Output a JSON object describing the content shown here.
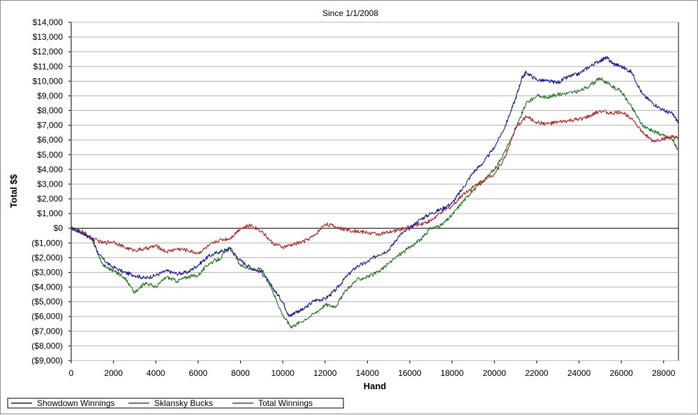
{
  "chart_data": {
    "type": "line",
    "title": "Since 1/1/2008",
    "xlabel": "Hand",
    "ylabel": "Total $$",
    "xlim": [
      0,
      28700
    ],
    "ylim": [
      -9000,
      14000
    ],
    "x_ticks": [
      0,
      2000,
      4000,
      6000,
      8000,
      10000,
      12000,
      14000,
      16000,
      18000,
      20000,
      22000,
      24000,
      26000,
      28000
    ],
    "x_tick_labels": [
      "0",
      "2000",
      "4000",
      "6000",
      "8000",
      "10000",
      "12000",
      "14000",
      "16000",
      "18000",
      "20000",
      "22000",
      "24000",
      "26000",
      "28000"
    ],
    "y_ticks": [
      14000,
      13000,
      12000,
      11000,
      10000,
      9000,
      8000,
      7000,
      6000,
      5000,
      4000,
      3000,
      2000,
      1000,
      0,
      -1000,
      -2000,
      -3000,
      -4000,
      -5000,
      -6000,
      -7000,
      -8000,
      -9000
    ],
    "y_tick_labels": [
      "$14,000",
      "$13,000",
      "$12,000",
      "$11,000",
      "$10,000",
      "$9,000",
      "$8,000",
      "$7,000",
      "$6,000",
      "$5,000",
      "$4,000",
      "$3,000",
      "$2,000",
      "$1,000",
      "$0",
      "($1,000)",
      "($2,000)",
      "($3,000)",
      "($4,000)",
      "($5,000)",
      "($6,000)",
      "($7,000)",
      "($8,000)",
      "($9,000)"
    ],
    "grid": true,
    "legend_position": "bottom",
    "series": [
      {
        "name": "Showdown Winnings",
        "color": "#1a1aa6",
        "x": [
          0,
          500,
          1000,
          1300,
          1800,
          2500,
          3000,
          3500,
          4000,
          4500,
          5000,
          5500,
          6000,
          6500,
          7000,
          7500,
          8000,
          8500,
          9000,
          9500,
          10000,
          10300,
          10600,
          11000,
          11500,
          12000,
          12500,
          13000,
          13500,
          14000,
          14500,
          15000,
          15500,
          16000,
          16500,
          17000,
          17500,
          18000,
          18500,
          19000,
          19500,
          20000,
          20500,
          21000,
          21300,
          21500,
          22000,
          22500,
          23000,
          23500,
          24000,
          24500,
          25000,
          25300,
          25600,
          26000,
          26500,
          27000,
          27500,
          28000,
          28400,
          28700
        ],
        "y": [
          0,
          -300,
          -700,
          -1800,
          -2500,
          -3000,
          -3200,
          -3400,
          -3200,
          -2900,
          -3100,
          -3000,
          -2500,
          -1900,
          -1600,
          -1400,
          -2200,
          -2700,
          -3000,
          -4000,
          -5000,
          -6000,
          -5700,
          -5500,
          -4900,
          -4800,
          -4200,
          -3300,
          -2600,
          -2300,
          -1800,
          -1500,
          -500,
          0,
          600,
          1000,
          1300,
          1700,
          2700,
          3800,
          4500,
          5500,
          6900,
          8800,
          10200,
          10600,
          10100,
          10000,
          9900,
          10300,
          10500,
          11000,
          11400,
          11600,
          11200,
          11000,
          10600,
          9100,
          8500,
          8000,
          7800,
          7200
        ]
      },
      {
        "name": "Sklansky Bucks",
        "color": "#b82525",
        "x": [
          0,
          500,
          1000,
          1500,
          2000,
          2500,
          3000,
          3500,
          4000,
          4500,
          5000,
          5500,
          6000,
          6500,
          7000,
          7500,
          8000,
          8500,
          9000,
          9500,
          10000,
          10500,
          11000,
          11500,
          12000,
          12500,
          13000,
          13500,
          14000,
          14500,
          15000,
          15500,
          16000,
          16500,
          17000,
          17500,
          18000,
          18500,
          19000,
          19500,
          20000,
          20500,
          21000,
          21500,
          22000,
          22500,
          23000,
          23500,
          24000,
          24500,
          25000,
          25500,
          26000,
          26500,
          27000,
          27500,
          28000,
          28400,
          28700
        ],
        "y": [
          0,
          -200,
          -700,
          -1000,
          -900,
          -1300,
          -1500,
          -1400,
          -1200,
          -1600,
          -1400,
          -1500,
          -1700,
          -1200,
          -800,
          -700,
          0,
          200,
          -200,
          -1000,
          -1300,
          -1100,
          -900,
          -500,
          300,
          100,
          -100,
          -200,
          -300,
          -400,
          -300,
          -100,
          100,
          300,
          500,
          1100,
          1500,
          2300,
          2800,
          3300,
          3700,
          4800,
          6800,
          7600,
          7200,
          7100,
          7200,
          7300,
          7400,
          7600,
          8000,
          7800,
          7900,
          7500,
          6500,
          5900,
          6100,
          6200,
          6100
        ]
      },
      {
        "name": "Total Winnings",
        "color": "#1e7a1e",
        "x": [
          0,
          500,
          1000,
          1500,
          2000,
          2500,
          3000,
          3500,
          4000,
          4500,
          5000,
          5500,
          6000,
          6500,
          7000,
          7500,
          8000,
          8500,
          9000,
          9500,
          10000,
          10400,
          10800,
          11500,
          12000,
          12500,
          13000,
          13500,
          14000,
          14500,
          15000,
          15500,
          16000,
          16500,
          17000,
          17500,
          18000,
          18500,
          19000,
          19500,
          20000,
          20500,
          21000,
          21500,
          22000,
          22500,
          23000,
          23500,
          24000,
          24500,
          25000,
          25500,
          26000,
          26500,
          27000,
          27500,
          28000,
          28400,
          28700
        ],
        "y": [
          0,
          -300,
          -800,
          -2500,
          -2900,
          -3300,
          -4400,
          -3700,
          -4000,
          -3300,
          -3600,
          -3300,
          -3200,
          -2400,
          -2100,
          -1300,
          -2500,
          -2800,
          -2800,
          -4200,
          -5900,
          -6700,
          -6400,
          -5800,
          -5200,
          -5300,
          -4200,
          -3500,
          -3300,
          -3000,
          -2400,
          -1800,
          -1300,
          -800,
          0,
          200,
          900,
          1800,
          2600,
          3200,
          4000,
          5200,
          6700,
          8500,
          9000,
          8900,
          9100,
          9200,
          9300,
          9700,
          10200,
          9700,
          9300,
          8200,
          7000,
          6600,
          6300,
          6100,
          5300
        ]
      }
    ]
  }
}
